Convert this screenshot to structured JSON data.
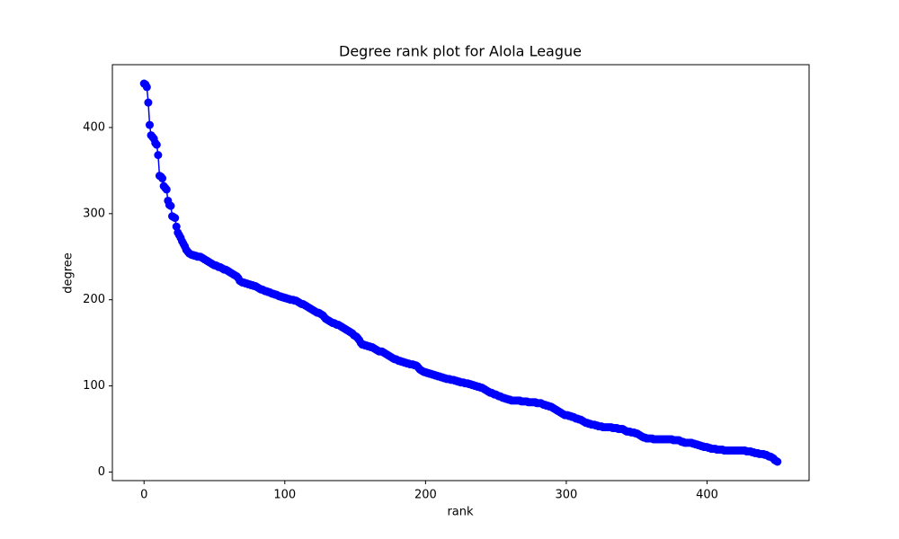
{
  "chart_data": {
    "type": "line",
    "title": "Degree rank plot for Alola League",
    "xlabel": "rank",
    "ylabel": "degree",
    "color": "#0000ff",
    "marker": "circle",
    "x": [
      0,
      1,
      2,
      3,
      4,
      5,
      6,
      7,
      8,
      9,
      10,
      11,
      12,
      13,
      14,
      15,
      16,
      17,
      18,
      19,
      20,
      21,
      22,
      23,
      24,
      25,
      26,
      27,
      28,
      29,
      30,
      31,
      32,
      33,
      34,
      35,
      36,
      37,
      38,
      39,
      40,
      41,
      42,
      43,
      44,
      45,
      46,
      47,
      48,
      49,
      50,
      51,
      52,
      53,
      54,
      55,
      56,
      57,
      58,
      59,
      60,
      61,
      62,
      63,
      64,
      65,
      66,
      67,
      68,
      69,
      70,
      71,
      72,
      73,
      74,
      75,
      76,
      77,
      78,
      79,
      80,
      81,
      82,
      83,
      84,
      85,
      86,
      87,
      88,
      89,
      90,
      91,
      92,
      93,
      94,
      95,
      96,
      97,
      98,
      99,
      100,
      101,
      102,
      103,
      104,
      105,
      106,
      107,
      108,
      109,
      110,
      111,
      112,
      113,
      114,
      115,
      116,
      117,
      118,
      119,
      120,
      121,
      122,
      123,
      124,
      125,
      126,
      127,
      128,
      129,
      130,
      131,
      132,
      133,
      134,
      135,
      136,
      137,
      138,
      139,
      140,
      141,
      142,
      143,
      144,
      145,
      146,
      147,
      148,
      149,
      150,
      151,
      152,
      153,
      154,
      155,
      156,
      157,
      158,
      159,
      160,
      161,
      162,
      163,
      164,
      165,
      166,
      167,
      168,
      169,
      170,
      171,
      172,
      173,
      174,
      175,
      176,
      177,
      178,
      179,
      180,
      181,
      182,
      183,
      184,
      185,
      186,
      187,
      188,
      189,
      190,
      191,
      192,
      193,
      194,
      195,
      196,
      197,
      198,
      199,
      200,
      201,
      202,
      203,
      204,
      205,
      206,
      207,
      208,
      209,
      210,
      211,
      212,
      213,
      214,
      215,
      216,
      217,
      218,
      219,
      220,
      221,
      222,
      223,
      224,
      225,
      226,
      227,
      228,
      229,
      230,
      231,
      232,
      233,
      234,
      235,
      236,
      237,
      238,
      239,
      240,
      241,
      242,
      243,
      244,
      245,
      246,
      247,
      248,
      249,
      250,
      251,
      252,
      253,
      254,
      255,
      256,
      257,
      258,
      259,
      260,
      261,
      262,
      263,
      264,
      265,
      266,
      267,
      268,
      269,
      270,
      271,
      272,
      273,
      274,
      275,
      276,
      277,
      278,
      279,
      280,
      281,
      282,
      283,
      284,
      285,
      286,
      287,
      288,
      289,
      290,
      291,
      292,
      293,
      294,
      295,
      296,
      297,
      298,
      299,
      300,
      301,
      302,
      303,
      304,
      305,
      306,
      307,
      308,
      309,
      310,
      311,
      312,
      313,
      314,
      315,
      316,
      317,
      318,
      319,
      320,
      321,
      322,
      323,
      324,
      325,
      326,
      327,
      328,
      329,
      330,
      331,
      332,
      333,
      334,
      335,
      336,
      337,
      338,
      339,
      340,
      341,
      342,
      343,
      344,
      345,
      346,
      347,
      348,
      349,
      350,
      351,
      352,
      353,
      354,
      355,
      356,
      357,
      358,
      359,
      360,
      361,
      362,
      363,
      364,
      365,
      366,
      367,
      368,
      369,
      370,
      371,
      372,
      373,
      374,
      375,
      376,
      377,
      378,
      379,
      380,
      381,
      382,
      383,
      384,
      385,
      386,
      387,
      388,
      389,
      390,
      391,
      392,
      393,
      394,
      395,
      396,
      397,
      398,
      399,
      400,
      401,
      402,
      403,
      404,
      405,
      406,
      407,
      408,
      409,
      410,
      411,
      412,
      413,
      414,
      415,
      416,
      417,
      418,
      419,
      420,
      421,
      422,
      423,
      424,
      425,
      426,
      427,
      428,
      429,
      430,
      431,
      432,
      433,
      434,
      435,
      436,
      437,
      438,
      439,
      440,
      441,
      442,
      443,
      444,
      445,
      446,
      447,
      448,
      449,
      450
    ],
    "values": [
      451,
      450,
      447,
      429,
      403,
      391,
      389,
      387,
      382,
      380,
      368,
      344,
      343,
      341,
      332,
      330,
      328,
      315,
      310,
      309,
      297,
      296,
      295,
      285,
      278,
      275,
      272,
      268,
      265,
      262,
      258,
      256,
      254,
      253,
      252,
      252,
      251,
      251,
      250,
      250,
      250,
      249,
      248,
      247,
      246,
      245,
      244,
      243,
      242,
      241,
      240,
      240,
      239,
      238,
      238,
      237,
      236,
      235,
      235,
      234,
      233,
      232,
      231,
      230,
      229,
      228,
      227,
      225,
      222,
      221,
      220,
      220,
      219,
      219,
      218,
      218,
      217,
      217,
      216,
      216,
      215,
      214,
      213,
      212,
      212,
      211,
      210,
      210,
      209,
      209,
      208,
      207,
      207,
      206,
      206,
      205,
      204,
      204,
      203,
      203,
      202,
      202,
      201,
      201,
      200,
      200,
      200,
      199,
      199,
      198,
      197,
      196,
      195,
      195,
      194,
      193,
      192,
      191,
      190,
      189,
      188,
      187,
      186,
      185,
      185,
      184,
      183,
      182,
      180,
      178,
      177,
      176,
      175,
      174,
      173,
      173,
      172,
      171,
      171,
      170,
      169,
      168,
      167,
      166,
      165,
      164,
      163,
      162,
      161,
      159,
      158,
      157,
      155,
      153,
      150,
      148,
      148,
      147,
      147,
      146,
      146,
      145,
      145,
      144,
      143,
      142,
      141,
      140,
      140,
      140,
      139,
      138,
      137,
      136,
      135,
      134,
      133,
      132,
      131,
      131,
      130,
      129,
      129,
      128,
      128,
      127,
      127,
      126,
      126,
      125,
      125,
      125,
      124,
      124,
      123,
      121,
      119,
      118,
      117,
      116,
      116,
      115,
      115,
      114,
      114,
      113,
      113,
      112,
      112,
      111,
      111,
      110,
      110,
      109,
      109,
      108,
      108,
      108,
      107,
      107,
      107,
      106,
      106,
      105,
      105,
      104,
      104,
      104,
      103,
      103,
      103,
      102,
      102,
      101,
      101,
      100,
      100,
      99,
      99,
      98,
      98,
      97,
      96,
      95,
      94,
      93,
      92,
      92,
      91,
      90,
      90,
      89,
      88,
      88,
      87,
      86,
      86,
      85,
      85,
      84,
      84,
      83,
      83,
      83,
      83,
      83,
      83,
      83,
      82,
      82,
      82,
      82,
      82,
      81,
      81,
      81,
      81,
      81,
      81,
      80,
      80,
      80,
      80,
      79,
      78,
      78,
      77,
      77,
      76,
      76,
      75,
      74,
      73,
      72,
      71,
      70,
      69,
      68,
      67,
      66,
      66,
      66,
      65,
      65,
      64,
      64,
      63,
      62,
      62,
      61,
      61,
      60,
      59,
      58,
      57,
      57,
      56,
      56,
      55,
      55,
      55,
      54,
      54,
      53,
      53,
      53,
      52,
      52,
      52,
      52,
      52,
      52,
      52,
      51,
      51,
      51,
      51,
      50,
      50,
      50,
      50,
      49,
      48,
      47,
      47,
      47,
      46,
      46,
      46,
      45,
      45,
      44,
      43,
      42,
      41,
      40,
      40,
      39,
      39,
      39,
      39,
      39,
      38,
      38,
      38,
      38,
      38,
      38,
      38,
      38,
      38,
      38,
      38,
      38,
      38,
      38,
      37,
      37,
      37,
      37,
      37,
      36,
      35,
      35,
      34,
      34,
      34,
      34,
      34,
      34,
      33,
      33,
      32,
      32,
      31,
      31,
      30,
      30,
      29,
      29,
      29,
      28,
      28,
      27,
      27,
      27,
      27,
      26,
      26,
      26,
      26,
      26,
      25,
      25,
      25,
      25,
      25,
      25,
      25,
      25,
      25,
      25,
      25,
      25,
      25,
      25,
      25,
      25,
      24,
      24,
      24,
      24,
      23,
      23,
      22,
      22,
      22,
      21,
      21,
      21,
      21,
      20,
      20,
      19,
      18,
      18,
      17,
      16,
      14,
      13,
      12
    ],
    "xlim": [
      -22.5,
      472.5
    ],
    "xticks": [
      0,
      100,
      200,
      300,
      400
    ],
    "ylim": [
      -9.95,
      472.95
    ],
    "yticks": [
      0,
      100,
      200,
      300,
      400
    ],
    "grid": false
  }
}
